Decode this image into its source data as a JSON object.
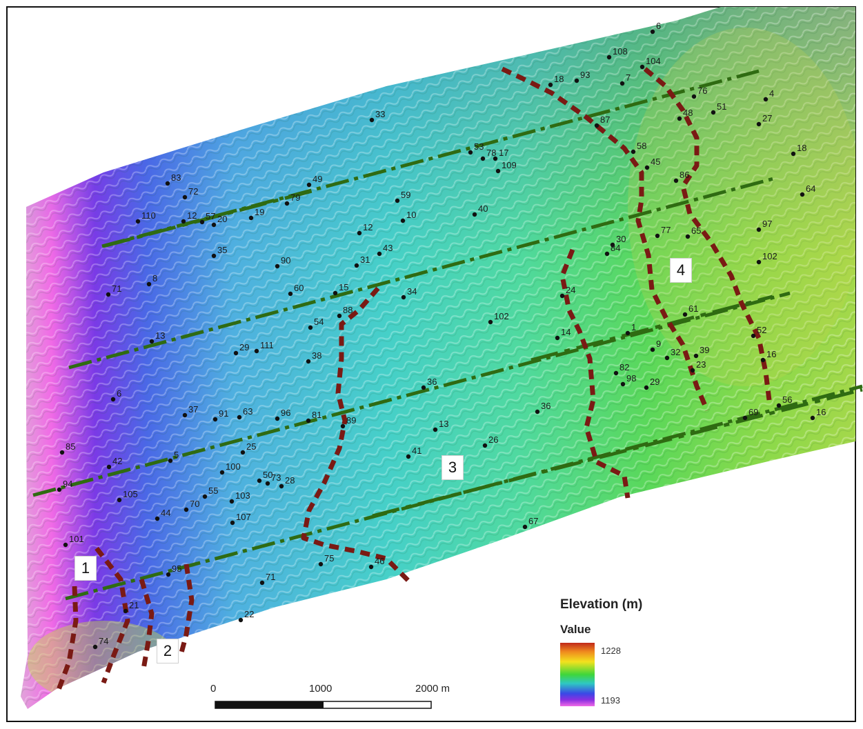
{
  "legend": {
    "title": "Elevation (m)",
    "subtitle": "Value",
    "max": "1228",
    "min": "1193",
    "colors": [
      "#c0281a",
      "#f08a1e",
      "#f2e21e",
      "#3fd63a",
      "#2fc9c2",
      "#3a48e6",
      "#8a2fe0",
      "#f06ae6"
    ]
  },
  "scale_bar": {
    "labels": [
      "0",
      "1000",
      "2000 m"
    ]
  },
  "zones": [
    "1",
    "2",
    "3",
    "4"
  ],
  "colors": {
    "transect": "#2f6b12",
    "boundary": "#7a1a14",
    "point": "#111111"
  },
  "points": [
    {
      "id": "6"
    },
    {
      "id": "108"
    },
    {
      "id": "104"
    },
    {
      "id": "18"
    },
    {
      "id": "93"
    },
    {
      "id": "7"
    },
    {
      "id": "4"
    },
    {
      "id": "76"
    },
    {
      "id": "51"
    },
    {
      "id": "48"
    },
    {
      "id": "27"
    },
    {
      "id": "87"
    },
    {
      "id": "33"
    },
    {
      "id": "18"
    },
    {
      "id": "58"
    },
    {
      "id": "53"
    },
    {
      "id": "78"
    },
    {
      "id": "17"
    },
    {
      "id": "45"
    },
    {
      "id": "109"
    },
    {
      "id": "86"
    },
    {
      "id": "64"
    },
    {
      "id": "83"
    },
    {
      "id": "49"
    },
    {
      "id": "72"
    },
    {
      "id": "79"
    },
    {
      "id": "59"
    },
    {
      "id": "110"
    },
    {
      "id": "12"
    },
    {
      "id": "57"
    },
    {
      "id": "20"
    },
    {
      "id": "19"
    },
    {
      "id": "10"
    },
    {
      "id": "40"
    },
    {
      "id": "97"
    },
    {
      "id": "12"
    },
    {
      "id": "77"
    },
    {
      "id": "65"
    },
    {
      "id": "30"
    },
    {
      "id": "35"
    },
    {
      "id": "43"
    },
    {
      "id": "84"
    },
    {
      "id": "102"
    },
    {
      "id": "90"
    },
    {
      "id": "31"
    },
    {
      "id": "71"
    },
    {
      "id": "8"
    },
    {
      "id": "60"
    },
    {
      "id": "15"
    },
    {
      "id": "34"
    },
    {
      "id": "24"
    },
    {
      "id": "61"
    },
    {
      "id": "88"
    },
    {
      "id": "102"
    },
    {
      "id": "54"
    },
    {
      "id": "1"
    },
    {
      "id": "52"
    },
    {
      "id": "14"
    },
    {
      "id": "13"
    },
    {
      "id": "29"
    },
    {
      "id": "111"
    },
    {
      "id": "9"
    },
    {
      "id": "38"
    },
    {
      "id": "39"
    },
    {
      "id": "32"
    },
    {
      "id": "16"
    },
    {
      "id": "23"
    },
    {
      "id": "82"
    },
    {
      "id": "98"
    },
    {
      "id": "29"
    },
    {
      "id": "36"
    },
    {
      "id": "6"
    },
    {
      "id": "37"
    },
    {
      "id": "91"
    },
    {
      "id": "63"
    },
    {
      "id": "96"
    },
    {
      "id": "81"
    },
    {
      "id": "36"
    },
    {
      "id": "56"
    },
    {
      "id": "69"
    },
    {
      "id": "16"
    },
    {
      "id": "89"
    },
    {
      "id": "13"
    },
    {
      "id": "85"
    },
    {
      "id": "25"
    },
    {
      "id": "26"
    },
    {
      "id": "41"
    },
    {
      "id": "42"
    },
    {
      "id": "5"
    },
    {
      "id": "100"
    },
    {
      "id": "50"
    },
    {
      "id": "73"
    },
    {
      "id": "28"
    },
    {
      "id": "94"
    },
    {
      "id": "105"
    },
    {
      "id": "55"
    },
    {
      "id": "103"
    },
    {
      "id": "70"
    },
    {
      "id": "44"
    },
    {
      "id": "107"
    },
    {
      "id": "67"
    },
    {
      "id": "101"
    },
    {
      "id": "75"
    },
    {
      "id": "46"
    },
    {
      "id": "95"
    },
    {
      "id": "71"
    },
    {
      "id": "21"
    },
    {
      "id": "22"
    },
    {
      "id": "74"
    }
  ]
}
